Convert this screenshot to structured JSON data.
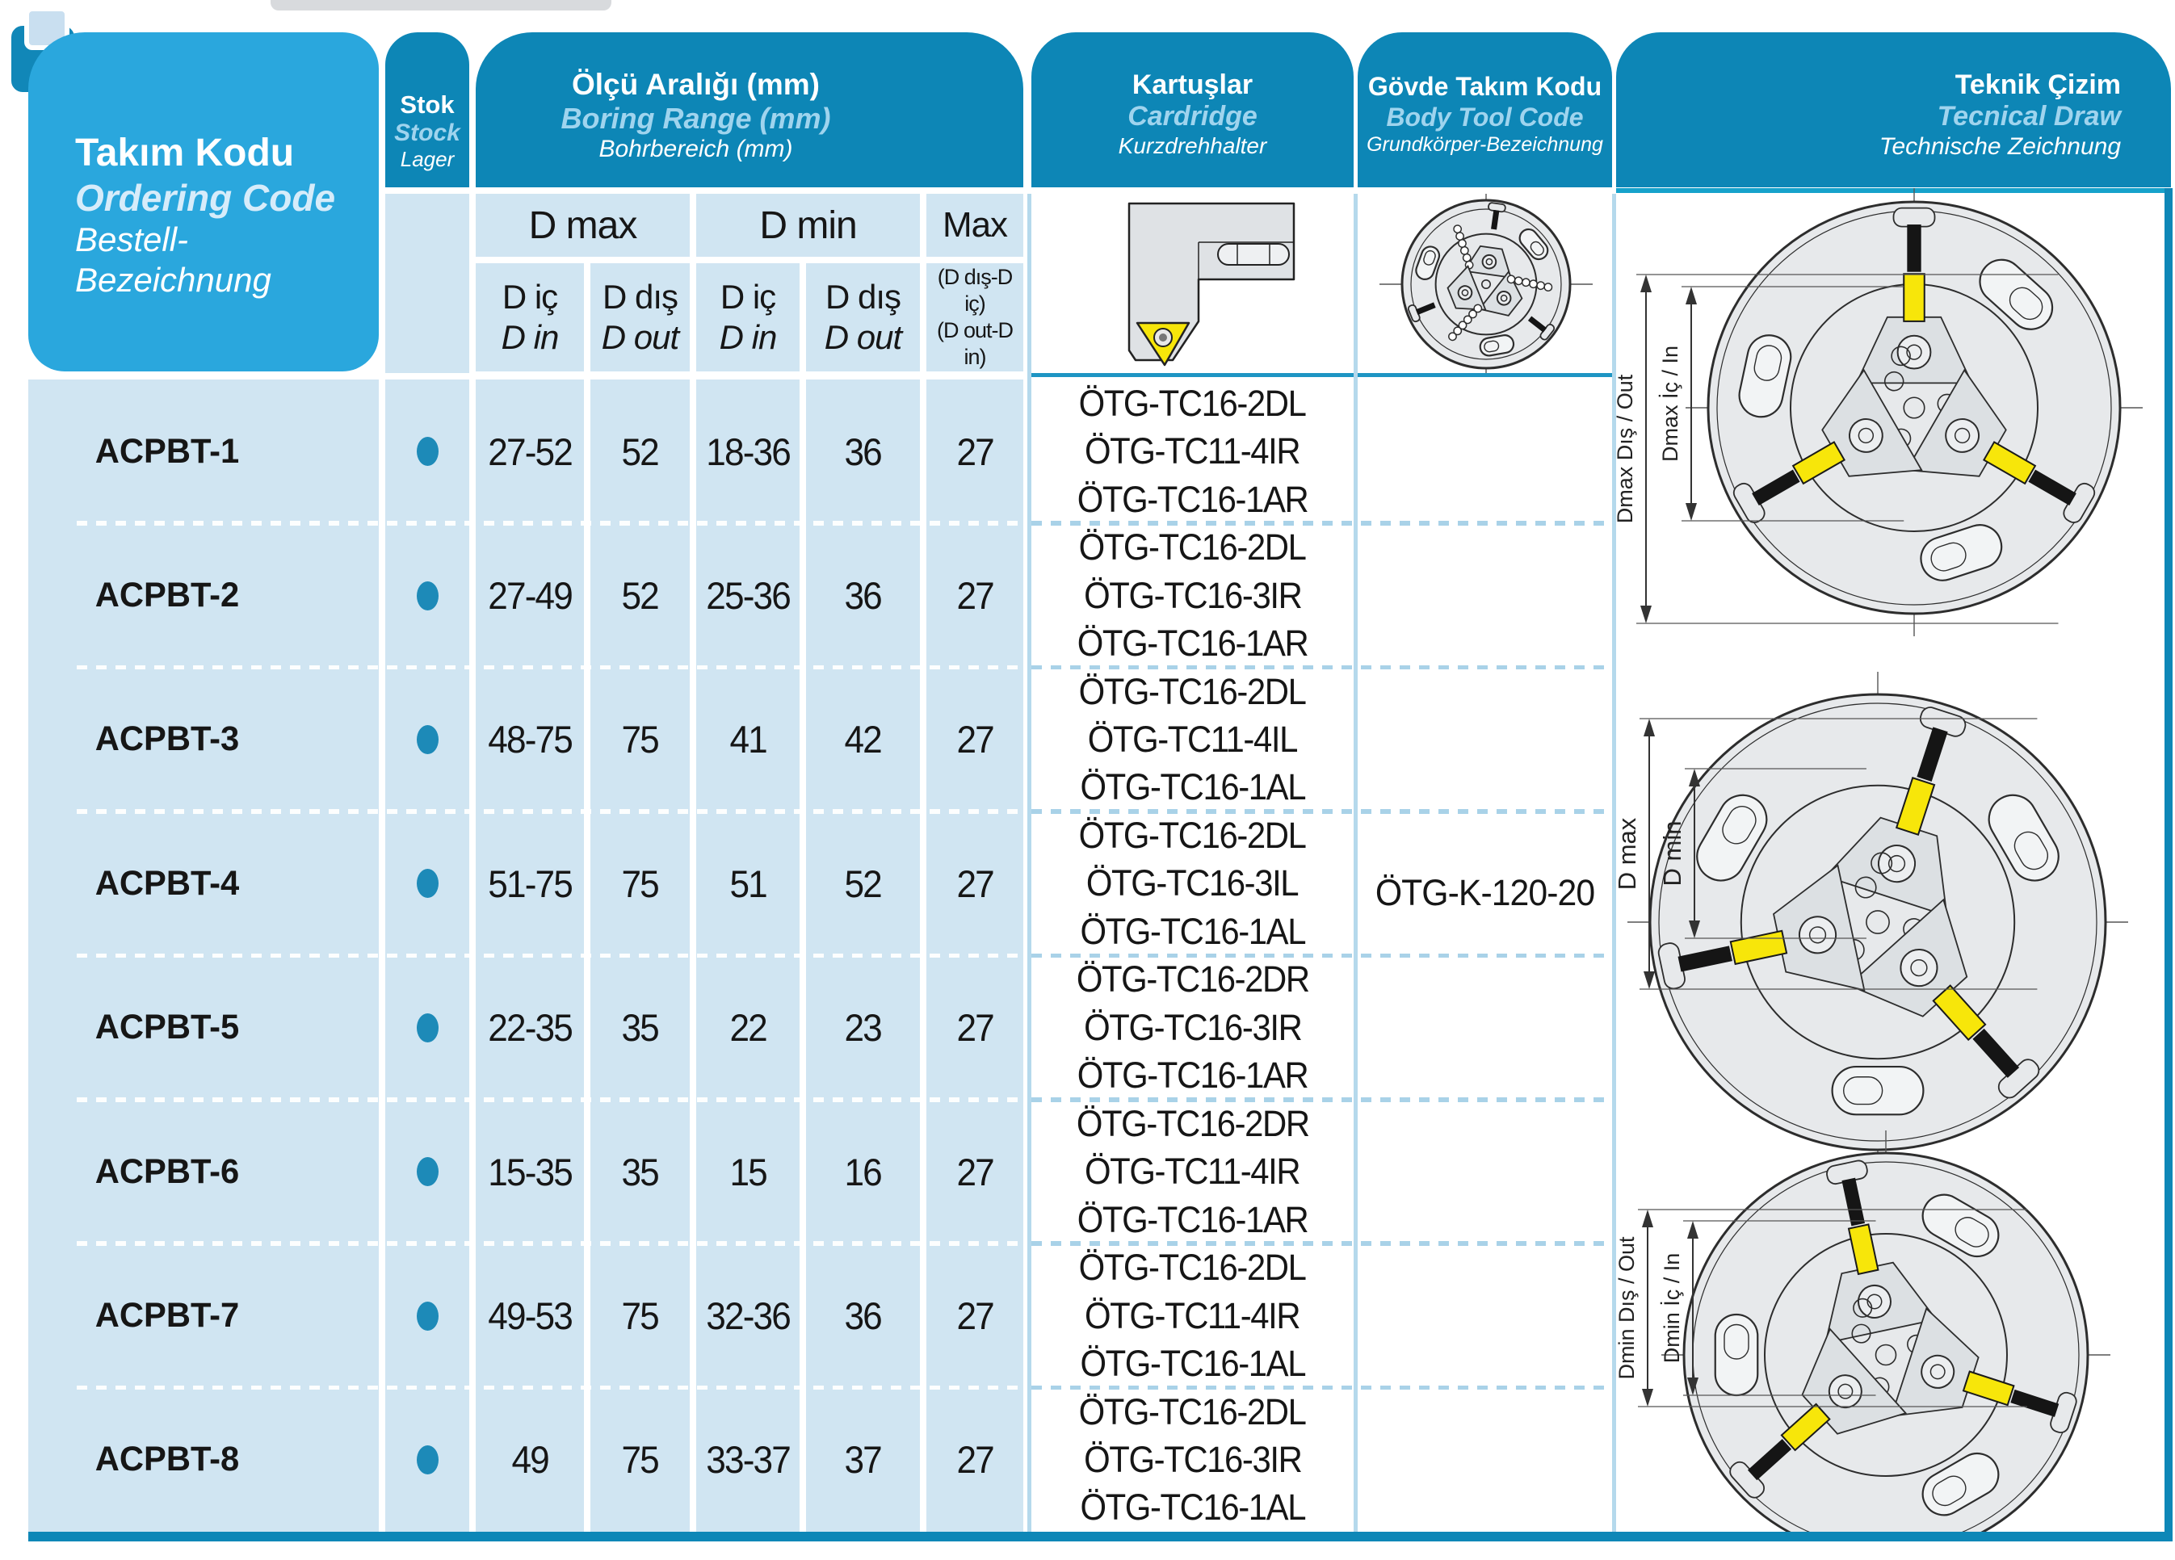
{
  "header": {
    "ordering_code": {
      "tr": "Takım Kodu",
      "en": "Ordering Code",
      "de": "Bestell-Bezeichnung"
    },
    "stock": {
      "tr": "Stok",
      "en": "Stock",
      "de": "Lager"
    },
    "boring_range": {
      "tr": "Ölçü Aralığı (mm)",
      "en": "Boring Range (mm)",
      "de": "Bohrbereich (mm)"
    },
    "cartridge": {
      "tr": "Kartuşlar",
      "en": "Cardridge",
      "de": "Kurzdrehhalter"
    },
    "body_tool_code": {
      "tr": "Gövde Takım Kodu",
      "en": "Body Tool Code",
      "de": "Grundkörper-Bezeichnung"
    },
    "technical_drawing": {
      "tr": "Teknik Çizim",
      "en": "Tecnical Draw",
      "de": "Technische Zeichnung"
    }
  },
  "subheader": {
    "d_max": "D max",
    "d_min": "D min",
    "max": "Max",
    "d_in_tr": "D iç",
    "d_in_en": "D in",
    "d_out_tr": "D dış",
    "d_out_en": "D out",
    "max_formula_tr": "(D dış-D iç)",
    "max_formula_en": "(D out-D in)"
  },
  "body_tool_code_value": "ÖTG-K-120-20",
  "rows": [
    {
      "code": "ACPBT-1",
      "stock": true,
      "d_max_in": "27-52",
      "d_max_out": "52",
      "d_min_in": "18-36",
      "d_min_out": "36",
      "max": "27",
      "cartridges": [
        "ÖTG-TC16-2DL",
        "ÖTG-TC11-4IR",
        "ÖTG-TC16-1AR"
      ]
    },
    {
      "code": "ACPBT-2",
      "stock": true,
      "d_max_in": "27-49",
      "d_max_out": "52",
      "d_min_in": "25-36",
      "d_min_out": "36",
      "max": "27",
      "cartridges": [
        "ÖTG-TC16-2DL",
        "ÖTG-TC16-3IR",
        "ÖTG-TC16-1AR"
      ]
    },
    {
      "code": "ACPBT-3",
      "stock": true,
      "d_max_in": "48-75",
      "d_max_out": "75",
      "d_min_in": "41",
      "d_min_out": "42",
      "max": "27",
      "cartridges": [
        "ÖTG-TC16-2DL",
        "ÖTG-TC11-4IL",
        "ÖTG-TC16-1AL"
      ]
    },
    {
      "code": "ACPBT-4",
      "stock": true,
      "d_max_in": "51-75",
      "d_max_out": "75",
      "d_min_in": "51",
      "d_min_out": "52",
      "max": "27",
      "cartridges": [
        "ÖTG-TC16-2DL",
        "ÖTG-TC16-3IL",
        "ÖTG-TC16-1AL"
      ]
    },
    {
      "code": "ACPBT-5",
      "stock": true,
      "d_max_in": "22-35",
      "d_max_out": "35",
      "d_min_in": "22",
      "d_min_out": "23",
      "max": "27",
      "cartridges": [
        "ÖTG-TC16-2DR",
        "ÖTG-TC16-3IR",
        "ÖTG-TC16-1AR"
      ]
    },
    {
      "code": "ACPBT-6",
      "stock": true,
      "d_max_in": "15-35",
      "d_max_out": "35",
      "d_min_in": "15",
      "d_min_out": "16",
      "max": "27",
      "cartridges": [
        "ÖTG-TC16-2DR",
        "ÖTG-TC11-4IR",
        "ÖTG-TC16-1AR"
      ]
    },
    {
      "code": "ACPBT-7",
      "stock": true,
      "d_max_in": "49-53",
      "d_max_out": "75",
      "d_min_in": "32-36",
      "d_min_out": "36",
      "max": "27",
      "cartridges": [
        "ÖTG-TC16-2DL",
        "ÖTG-TC11-4IR",
        "ÖTG-TC16-1AL"
      ]
    },
    {
      "code": "ACPBT-8",
      "stock": true,
      "d_max_in": "49",
      "d_max_out": "75",
      "d_min_in": "33-37",
      "d_min_out": "37",
      "max": "27",
      "cartridges": [
        "ÖTG-TC16-2DL",
        "ÖTG-TC16-3IR",
        "ÖTG-TC16-1AL"
      ]
    }
  ],
  "technical_drawings": [
    {
      "outer_label": "Dmax Dış / Out",
      "inner_label": "Dmax İç / In"
    },
    {
      "outer_label": "D max",
      "inner_label": "D min"
    },
    {
      "outer_label": "Dmin Dış / Out",
      "inner_label": "Dmin İç / In"
    }
  ],
  "colors": {
    "header_dark_blue": "#0d86b6",
    "ordering_code_box_blue": "#2aa7dd",
    "light_cell_blue": "#d0e5f2",
    "english_text_blue": "#9fd4ee",
    "stock_dot_blue": "#1d8ab8",
    "insert_yellow": "#f7e60a",
    "frame_teal": "#16a2cb"
  },
  "icons": {
    "stock_dot": "filled-circle"
  }
}
